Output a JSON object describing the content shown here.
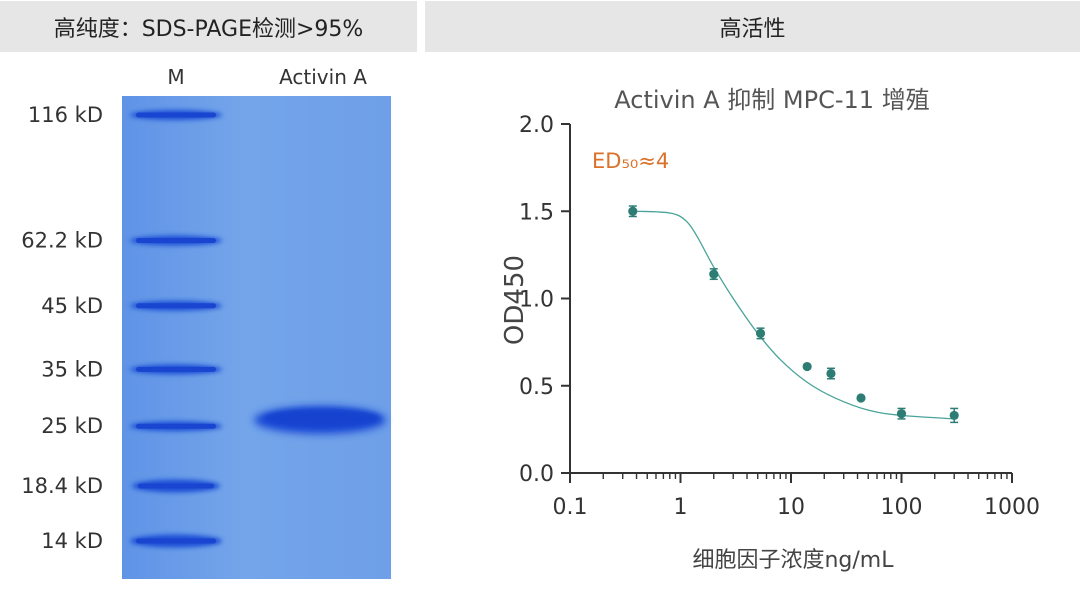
{
  "gel": {
    "header": "高纯度：SDS-PAGE检测>95%",
    "lanes": [
      "M",
      "Activin A"
    ],
    "markers": [
      {
        "label": "116 kD",
        "kd": 116
      },
      {
        "label": "62.2 kD",
        "kd": 62.2
      },
      {
        "label": "45 kD",
        "kd": 45
      },
      {
        "label": "35 kD",
        "kd": 35
      },
      {
        "label": "25 kD",
        "kd": 25
      },
      {
        "label": "18.4 kD",
        "kd": 18.4
      },
      {
        "label": "14 kD",
        "kd": 14
      }
    ],
    "colors": {
      "background": "#6e9ee8",
      "band": "#1f4fd6"
    }
  },
  "activity": {
    "header": "高活性"
  },
  "chart_data": {
    "type": "scatter",
    "title": "Activin A 抑制 MPC-11 增殖",
    "annotation": "ED₅₀≈4",
    "xlabel": "细胞因子浓度ng/mL",
    "ylabel": "OD450",
    "x_scale": "log",
    "xlim": [
      0.1,
      1000
    ],
    "ylim": [
      0.0,
      2.0
    ],
    "x_ticks": [
      "0.1",
      "1",
      "10",
      "100",
      "1000"
    ],
    "y_ticks": [
      "0.0",
      "0.5",
      "1.0",
      "1.5",
      "2.0"
    ],
    "grid": false,
    "series": [
      {
        "x": [
          0.37,
          2.0,
          5.3,
          14,
          23,
          43,
          100,
          300
        ],
        "y": [
          1.5,
          1.14,
          0.8,
          0.61,
          0.57,
          0.43,
          0.34,
          0.33
        ],
        "error": [
          0.03,
          0.03,
          0.03,
          0.0,
          0.03,
          0.0,
          0.03,
          0.04
        ]
      }
    ],
    "fit_curve": {
      "x": [
        0.4,
        0.8,
        1.1,
        1.4,
        2.0,
        3.0,
        5.0,
        8.0,
        14,
        25,
        50,
        100,
        300
      ],
      "y": [
        1.5,
        1.49,
        1.45,
        1.36,
        1.18,
        1.0,
        0.8,
        0.65,
        0.52,
        0.43,
        0.36,
        0.33,
        0.31
      ]
    },
    "colors": {
      "point": "#2e7d75",
      "curve": "#4aa39b",
      "annotation": "#d9722a",
      "axis": "#333333"
    }
  }
}
